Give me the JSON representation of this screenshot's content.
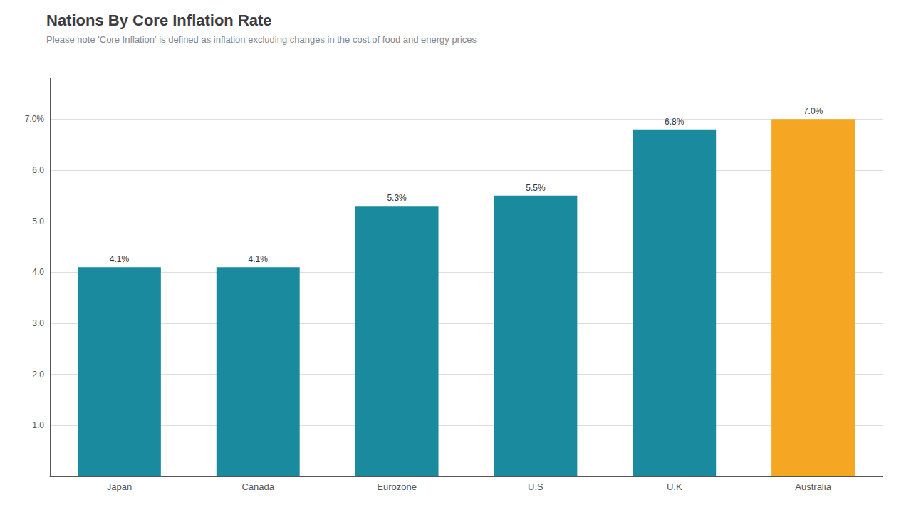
{
  "chart_data": {
    "type": "bar",
    "title": "Nations By Core Inflation Rate",
    "subtitle": "Please note 'Core Inflation' is defined as inflation excluding changes in the cost of food and energy prices",
    "categories": [
      "Japan",
      "Canada",
      "Eurozone",
      "U.S",
      "U.K",
      "Australia"
    ],
    "values": [
      4.1,
      4.1,
      5.3,
      5.5,
      6.8,
      7.0
    ],
    "value_labels": [
      "4.1%",
      "4.1%",
      "5.3%",
      "5.5%",
      "6.8%",
      "7.0%"
    ],
    "colors": [
      "#1a8a9e",
      "#1a8a9e",
      "#1a8a9e",
      "#1a8a9e",
      "#1a8a9e",
      "#f5a623"
    ],
    "ylim": [
      0,
      7.8
    ],
    "yticks": [
      {
        "value": 1.0,
        "label": "1.0"
      },
      {
        "value": 2.0,
        "label": "2.0"
      },
      {
        "value": 3.0,
        "label": "3.0"
      },
      {
        "value": 4.0,
        "label": "4.0"
      },
      {
        "value": 5.0,
        "label": "5.0"
      },
      {
        "value": 6.0,
        "label": "6.0"
      },
      {
        "value": 7.0,
        "label": "7.0%"
      }
    ],
    "grid": true,
    "data_labels": true
  }
}
